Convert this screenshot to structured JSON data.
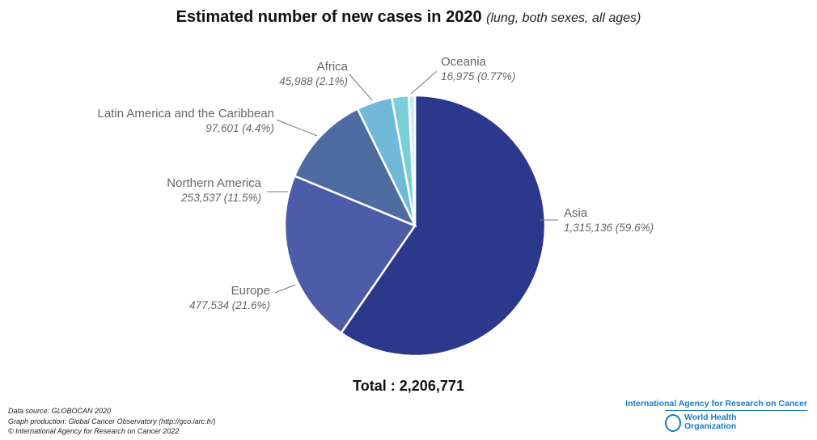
{
  "chart_data": {
    "type": "pie",
    "title": "Estimated number of new cases in 2020",
    "subtitle": "(lung, both sexes, all ages)",
    "total_label": "Total : 2,206,771",
    "slices": [
      {
        "name": "Asia",
        "value": 1315136,
        "value_label": "1,315,136 (59.6%)",
        "color": "#2b388b"
      },
      {
        "name": "Europe",
        "value": 477534,
        "value_label": "477,534 (21.6%)",
        "color": "#4d5ca8"
      },
      {
        "name": "Northern America",
        "value": 253537,
        "value_label": "253,537 (11.5%)",
        "color": "#4f6ca2"
      },
      {
        "name": "Latin America and the Caribbean",
        "value": 97601,
        "value_label": "97,601 (4.4%)",
        "color": "#70b9d8"
      },
      {
        "name": "Africa",
        "value": 45988,
        "value_label": "45,988 (2.1%)",
        "color": "#79ced9"
      },
      {
        "name": "Oceania",
        "value": 16975,
        "value_label": "16,975 (0.77%)",
        "color": "#c8eef4"
      }
    ]
  },
  "footer": {
    "source": "Data source: GLOBOCAN 2020",
    "production": "Graph production: Global Cancer Observatory (http://gco.iarc.fr/)",
    "copyright": "© International Agency for Research on Cancer 2022"
  },
  "logo": {
    "iarc": "International Agency for Research on Cancer",
    "who_line1": "World Health",
    "who_line2": "Organization"
  }
}
